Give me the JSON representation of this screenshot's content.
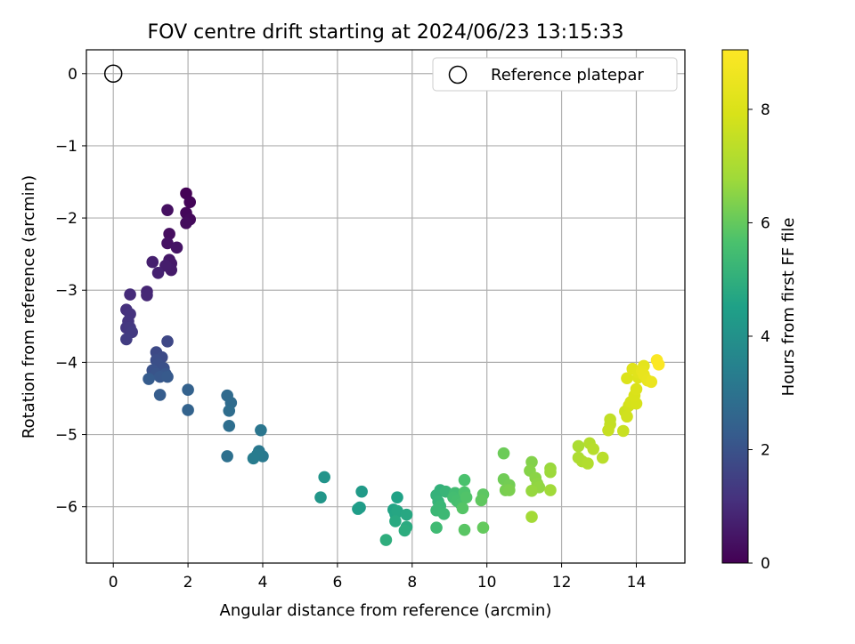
{
  "chart_data": {
    "type": "scatter",
    "title": "FOV centre drift starting at 2024/06/23 13:15:33",
    "xlabel": "Angular distance from reference (arcmin)",
    "ylabel": "Rotation from reference (arcmin)",
    "xlim": [
      -0.72,
      15.3
    ],
    "ylim": [
      -6.78,
      0.33
    ],
    "x_ticks": [
      0,
      2,
      4,
      6,
      8,
      10,
      12,
      14
    ],
    "y_ticks": [
      0,
      -1,
      -2,
      -3,
      -4,
      -5,
      -6
    ],
    "x_tick_labels": [
      "0",
      "2",
      "4",
      "6",
      "8",
      "10",
      "12",
      "14"
    ],
    "y_tick_labels": [
      "0",
      "−1",
      "−2",
      "−3",
      "−4",
      "−5",
      "−6"
    ],
    "grid": true,
    "legend": {
      "position": "top-right",
      "entries": [
        "Reference platepar"
      ]
    },
    "reference_point": {
      "x": 0,
      "y": 0
    },
    "colorbar": {
      "label": "Hours from first FF file",
      "colormap": "viridis",
      "range": [
        0,
        9.05
      ],
      "ticks": [
        0,
        2,
        4,
        6,
        8
      ],
      "tick_labels": [
        "0",
        "2",
        "4",
        "6",
        "8"
      ]
    },
    "points": [
      {
        "x": 1.95,
        "y": -1.66,
        "h": 0.05
      },
      {
        "x": 2.05,
        "y": -1.78,
        "h": 0.1
      },
      {
        "x": 1.95,
        "y": -1.93,
        "h": 0.15
      },
      {
        "x": 2.05,
        "y": -2.02,
        "h": 0.2
      },
      {
        "x": 1.95,
        "y": -2.07,
        "h": 0.25
      },
      {
        "x": 1.5,
        "y": -2.22,
        "h": 0.3
      },
      {
        "x": 1.45,
        "y": -1.89,
        "h": 0.35
      },
      {
        "x": 1.45,
        "y": -2.35,
        "h": 0.4
      },
      {
        "x": 1.7,
        "y": -2.41,
        "h": 0.45
      },
      {
        "x": 1.5,
        "y": -2.58,
        "h": 0.5
      },
      {
        "x": 1.55,
        "y": -2.63,
        "h": 0.55
      },
      {
        "x": 1.55,
        "y": -2.72,
        "h": 0.6
      },
      {
        "x": 1.4,
        "y": -2.66,
        "h": 0.65
      },
      {
        "x": 1.05,
        "y": -2.61,
        "h": 0.7
      },
      {
        "x": 1.2,
        "y": -2.76,
        "h": 0.75
      },
      {
        "x": 0.9,
        "y": -3.02,
        "h": 0.85
      },
      {
        "x": 0.9,
        "y": -3.07,
        "h": 0.9
      },
      {
        "x": 0.45,
        "y": -3.06,
        "h": 1.0
      },
      {
        "x": 0.35,
        "y": -3.27,
        "h": 1.1
      },
      {
        "x": 0.45,
        "y": -3.33,
        "h": 1.15
      },
      {
        "x": 0.4,
        "y": -3.43,
        "h": 1.2
      },
      {
        "x": 0.35,
        "y": -3.52,
        "h": 1.25
      },
      {
        "x": 0.45,
        "y": -3.52,
        "h": 1.3
      },
      {
        "x": 0.5,
        "y": -3.58,
        "h": 1.35
      },
      {
        "x": 0.35,
        "y": -3.68,
        "h": 1.4
      },
      {
        "x": 1.45,
        "y": -3.71,
        "h": 1.7
      },
      {
        "x": 1.15,
        "y": -3.86,
        "h": 1.75
      },
      {
        "x": 1.3,
        "y": -3.93,
        "h": 1.8
      },
      {
        "x": 1.15,
        "y": -3.97,
        "h": 1.85
      },
      {
        "x": 1.2,
        "y": -4.03,
        "h": 1.9
      },
      {
        "x": 1.35,
        "y": -4.08,
        "h": 1.95
      },
      {
        "x": 1.05,
        "y": -4.11,
        "h": 2.0
      },
      {
        "x": 1.15,
        "y": -4.16,
        "h": 2.05
      },
      {
        "x": 1.4,
        "y": -4.16,
        "h": 2.1
      },
      {
        "x": 1.25,
        "y": -4.2,
        "h": 2.15
      },
      {
        "x": 1.45,
        "y": -4.2,
        "h": 2.2
      },
      {
        "x": 0.95,
        "y": -4.23,
        "h": 2.25
      },
      {
        "x": 1.25,
        "y": -4.45,
        "h": 2.3
      },
      {
        "x": 2.0,
        "y": -4.38,
        "h": 2.45
      },
      {
        "x": 2.0,
        "y": -4.66,
        "h": 2.5
      },
      {
        "x": 3.05,
        "y": -4.46,
        "h": 2.7
      },
      {
        "x": 3.15,
        "y": -4.56,
        "h": 2.75
      },
      {
        "x": 3.1,
        "y": -4.67,
        "h": 2.8
      },
      {
        "x": 3.1,
        "y": -4.88,
        "h": 2.85
      },
      {
        "x": 3.05,
        "y": -5.3,
        "h": 2.9
      },
      {
        "x": 3.95,
        "y": -4.94,
        "h": 3.1
      },
      {
        "x": 3.9,
        "y": -5.23,
        "h": 3.15
      },
      {
        "x": 4.0,
        "y": -5.3,
        "h": 3.2
      },
      {
        "x": 3.85,
        "y": -5.28,
        "h": 3.25
      },
      {
        "x": 3.75,
        "y": -5.33,
        "h": 3.3
      },
      {
        "x": 5.65,
        "y": -5.59,
        "h": 4.1
      },
      {
        "x": 5.55,
        "y": -5.87,
        "h": 4.15
      },
      {
        "x": 6.65,
        "y": -5.79,
        "h": 4.3
      },
      {
        "x": 6.6,
        "y": -6.01,
        "h": 4.35
      },
      {
        "x": 6.55,
        "y": -6.03,
        "h": 4.4
      },
      {
        "x": 7.6,
        "y": -5.87,
        "h": 4.55
      },
      {
        "x": 7.5,
        "y": -6.04,
        "h": 4.6
      },
      {
        "x": 7.55,
        "y": -6.1,
        "h": 4.65
      },
      {
        "x": 7.6,
        "y": -6.06,
        "h": 4.7
      },
      {
        "x": 7.85,
        "y": -6.11,
        "h": 4.75
      },
      {
        "x": 7.55,
        "y": -6.2,
        "h": 4.8
      },
      {
        "x": 7.85,
        "y": -6.28,
        "h": 4.85
      },
      {
        "x": 7.8,
        "y": -6.33,
        "h": 4.9
      },
      {
        "x": 7.3,
        "y": -6.46,
        "h": 4.95
      },
      {
        "x": 8.75,
        "y": -5.77,
        "h": 5.05
      },
      {
        "x": 8.65,
        "y": -5.84,
        "h": 5.1
      },
      {
        "x": 8.7,
        "y": -5.93,
        "h": 5.15
      },
      {
        "x": 8.9,
        "y": -5.79,
        "h": 5.2
      },
      {
        "x": 8.75,
        "y": -5.99,
        "h": 5.25
      },
      {
        "x": 8.65,
        "y": -6.05,
        "h": 5.3
      },
      {
        "x": 8.85,
        "y": -6.1,
        "h": 5.35
      },
      {
        "x": 8.65,
        "y": -6.29,
        "h": 5.4
      },
      {
        "x": 9.15,
        "y": -5.81,
        "h": 5.45
      },
      {
        "x": 9.1,
        "y": -5.87,
        "h": 5.5
      },
      {
        "x": 9.2,
        "y": -5.92,
        "h": 5.55
      },
      {
        "x": 9.3,
        "y": -5.96,
        "h": 5.6
      },
      {
        "x": 9.4,
        "y": -5.63,
        "h": 5.65
      },
      {
        "x": 9.4,
        "y": -5.8,
        "h": 5.7
      },
      {
        "x": 9.45,
        "y": -5.87,
        "h": 5.75
      },
      {
        "x": 9.35,
        "y": -6.02,
        "h": 5.8
      },
      {
        "x": 9.4,
        "y": -6.32,
        "h": 5.85
      },
      {
        "x": 9.9,
        "y": -5.83,
        "h": 5.9
      },
      {
        "x": 9.85,
        "y": -5.91,
        "h": 5.95
      },
      {
        "x": 9.9,
        "y": -6.29,
        "h": 6.0
      },
      {
        "x": 10.45,
        "y": -5.26,
        "h": 6.1
      },
      {
        "x": 10.45,
        "y": -5.62,
        "h": 6.15
      },
      {
        "x": 10.6,
        "y": -5.7,
        "h": 6.2
      },
      {
        "x": 10.5,
        "y": -5.77,
        "h": 6.25
      },
      {
        "x": 10.6,
        "y": -5.77,
        "h": 6.3
      },
      {
        "x": 11.2,
        "y": -5.38,
        "h": 6.4
      },
      {
        "x": 11.15,
        "y": -5.5,
        "h": 6.45
      },
      {
        "x": 11.3,
        "y": -5.6,
        "h": 6.5
      },
      {
        "x": 11.35,
        "y": -5.68,
        "h": 6.55
      },
      {
        "x": 11.4,
        "y": -5.73,
        "h": 6.6
      },
      {
        "x": 11.2,
        "y": -5.78,
        "h": 6.65
      },
      {
        "x": 11.7,
        "y": -5.47,
        "h": 6.7
      },
      {
        "x": 11.7,
        "y": -5.52,
        "h": 6.75
      },
      {
        "x": 11.7,
        "y": -5.77,
        "h": 6.8
      },
      {
        "x": 11.2,
        "y": -6.14,
        "h": 6.85
      },
      {
        "x": 12.45,
        "y": -5.16,
        "h": 7.0
      },
      {
        "x": 12.45,
        "y": -5.32,
        "h": 7.05
      },
      {
        "x": 12.55,
        "y": -5.37,
        "h": 7.1
      },
      {
        "x": 12.7,
        "y": -5.4,
        "h": 7.15
      },
      {
        "x": 12.75,
        "y": -5.12,
        "h": 7.2
      },
      {
        "x": 12.85,
        "y": -5.2,
        "h": 7.25
      },
      {
        "x": 13.1,
        "y": -5.32,
        "h": 7.3
      },
      {
        "x": 13.3,
        "y": -4.79,
        "h": 7.45
      },
      {
        "x": 13.3,
        "y": -4.86,
        "h": 7.5
      },
      {
        "x": 13.25,
        "y": -4.94,
        "h": 7.55
      },
      {
        "x": 13.65,
        "y": -4.95,
        "h": 7.6
      },
      {
        "x": 13.7,
        "y": -4.68,
        "h": 7.7
      },
      {
        "x": 13.75,
        "y": -4.75,
        "h": 7.75
      },
      {
        "x": 13.8,
        "y": -4.6,
        "h": 7.8
      },
      {
        "x": 13.85,
        "y": -4.55,
        "h": 7.85
      },
      {
        "x": 14.0,
        "y": -4.57,
        "h": 7.9
      },
      {
        "x": 13.95,
        "y": -4.46,
        "h": 7.95
      },
      {
        "x": 14.0,
        "y": -4.37,
        "h": 8.0
      },
      {
        "x": 13.75,
        "y": -4.22,
        "h": 8.05
      },
      {
        "x": 14.05,
        "y": -4.21,
        "h": 8.1
      },
      {
        "x": 13.9,
        "y": -4.09,
        "h": 8.15
      },
      {
        "x": 14.05,
        "y": -4.14,
        "h": 8.2
      },
      {
        "x": 14.2,
        "y": -4.05,
        "h": 8.3
      },
      {
        "x": 14.15,
        "y": -4.12,
        "h": 8.35
      },
      {
        "x": 14.2,
        "y": -4.17,
        "h": 8.4
      },
      {
        "x": 14.3,
        "y": -4.25,
        "h": 8.45
      },
      {
        "x": 14.4,
        "y": -4.27,
        "h": 8.5
      },
      {
        "x": 14.55,
        "y": -3.97,
        "h": 8.95
      },
      {
        "x": 14.6,
        "y": -4.03,
        "h": 9.0
      }
    ]
  }
}
